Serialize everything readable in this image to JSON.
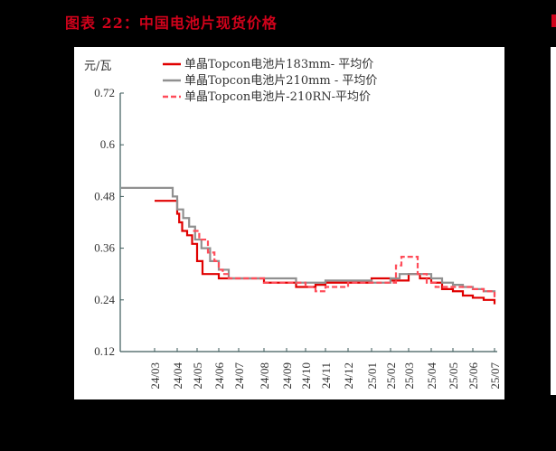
{
  "title": "图表 22：中国电池片现货价格",
  "chart_data": {
    "type": "line",
    "title": "图表 22：中国电池片现货价格",
    "ylabel": "元/瓦",
    "xlabel": "",
    "ylim": [
      0.12,
      0.72
    ],
    "yticks": [
      "0.72",
      "0.6",
      "0.48",
      "0.36",
      "0.24",
      "0.12"
    ],
    "categories": [
      "24/03",
      "24/04",
      "24/05",
      "24/06",
      "24/07",
      "24/08",
      "24/09",
      "24/10",
      "24/11",
      "24/12",
      "25/01",
      "25/02",
      "25/03",
      "25/04",
      "25/05",
      "25/06",
      "25/07"
    ],
    "grid": false,
    "legend_position": "top",
    "series": [
      {
        "name": "单晶Topcon电池片183mm- 平均价",
        "color": "#e00000",
        "style": "solid",
        "x": [
          0.0,
          0.75,
          1.0,
          1.1,
          1.25,
          1.5,
          1.75,
          2.0,
          2.25,
          2.5,
          3.0,
          3.5,
          5.0,
          6.0,
          6.5,
          7.0,
          7.5,
          8.0,
          9.0,
          10.0,
          10.5,
          11.0,
          12.0,
          12.5,
          13.0,
          13.5,
          14.0,
          14.5,
          15.0,
          15.5,
          16.0
        ],
        "values": [
          0.47,
          0.47,
          0.44,
          0.42,
          0.4,
          0.39,
          0.37,
          0.33,
          0.3,
          0.3,
          0.29,
          0.29,
          0.28,
          0.28,
          0.27,
          0.27,
          0.275,
          0.28,
          0.28,
          0.29,
          0.29,
          0.285,
          0.3,
          0.29,
          0.28,
          0.265,
          0.26,
          0.25,
          0.245,
          0.24,
          0.23
        ]
      },
      {
        "name": "单晶Topcon电池片210mm - 平均价",
        "color": "#909090",
        "style": "solid",
        "x": [
          -1.5,
          0.6,
          0.8,
          1.0,
          1.3,
          1.6,
          1.9,
          2.2,
          2.6,
          3.0,
          3.5,
          5.0,
          6.0,
          6.5,
          7.0,
          7.5,
          8.0,
          9.0,
          10.0,
          11.0,
          11.5,
          12.0,
          12.5,
          13.0,
          13.5,
          14.0,
          14.5,
          15.0,
          15.5,
          16.0
        ],
        "values": [
          0.5,
          0.5,
          0.48,
          0.45,
          0.43,
          0.41,
          0.38,
          0.36,
          0.33,
          0.31,
          0.29,
          0.29,
          0.29,
          0.28,
          0.28,
          0.28,
          0.285,
          0.285,
          0.28,
          0.29,
          0.3,
          0.3,
          0.3,
          0.29,
          0.28,
          0.275,
          0.27,
          0.265,
          0.26,
          0.25
        ]
      },
      {
        "name": "单晶Topcon电池片-210RN-平均价",
        "color": "#ff4d5a",
        "style": "dashed",
        "x": [
          1.8,
          2.1,
          2.5,
          2.8,
          3.0,
          3.2,
          3.5,
          5.0,
          6.0,
          7.0,
          7.5,
          8.0,
          9.0,
          10.0,
          11.0,
          11.3,
          11.6,
          12.0,
          12.4,
          12.8,
          13.2,
          13.6,
          14.0,
          14.5,
          15.0,
          15.5,
          16.0
        ],
        "values": [
          0.4,
          0.38,
          0.35,
          0.33,
          0.31,
          0.3,
          0.29,
          0.28,
          0.28,
          0.27,
          0.26,
          0.27,
          0.28,
          0.28,
          0.28,
          0.32,
          0.34,
          0.34,
          0.3,
          0.28,
          0.27,
          0.27,
          0.27,
          0.27,
          0.265,
          0.26,
          0.245
        ]
      }
    ]
  },
  "legend": {
    "items": [
      {
        "label": "单晶Topcon电池片183mm- 平均价",
        "color": "#e00000",
        "style": "solid"
      },
      {
        "label": "单晶Topcon电池片210mm - 平均价",
        "color": "#909090",
        "style": "solid"
      },
      {
        "label": "单晶Topcon电池片-210RN-平均价",
        "color": "#ff4d5a",
        "style": "dashed"
      }
    ]
  },
  "axis": {
    "unit": "元/瓦"
  }
}
